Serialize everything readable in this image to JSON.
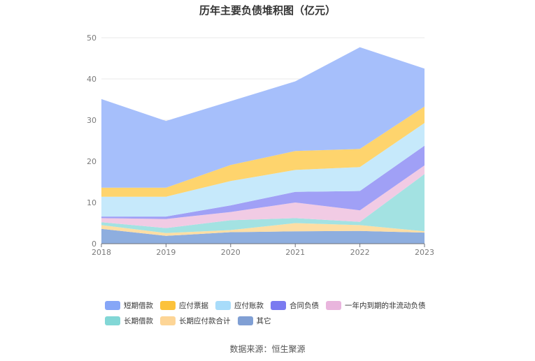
{
  "chart_data": {
    "type": "area",
    "stacked": true,
    "title": "历年主要负债堆积图（亿元）",
    "x": [
      "2018",
      "2019",
      "2020",
      "2021",
      "2022",
      "2023"
    ],
    "ylim": [
      0,
      50
    ],
    "yticks": [
      0,
      10,
      20,
      30,
      40,
      50
    ],
    "grid": true,
    "legend_position": "bottom",
    "series": [
      {
        "name": "其它",
        "color": "#8eaedf",
        "values": [
          3.6,
          1.9,
          2.8,
          3.0,
          3.1,
          2.7
        ]
      },
      {
        "name": "长期应付款合计",
        "color": "#fddea4",
        "values": [
          0.9,
          0.7,
          0.5,
          2.0,
          1.4,
          0.3
        ]
      },
      {
        "name": "长期借款",
        "color": "#a3e2e2",
        "values": [
          0.7,
          1.2,
          2.4,
          1.2,
          0.8,
          13.9
        ]
      },
      {
        "name": "一年内到期的非流动负债",
        "color": "#f1cbe4",
        "values": [
          1.0,
          2.2,
          2.0,
          3.8,
          2.8,
          2.1
        ]
      },
      {
        "name": "合同负债",
        "color": "#a0a0f6",
        "values": [
          0.4,
          0.6,
          1.6,
          2.6,
          4.7,
          4.8
        ]
      },
      {
        "name": "应付账款",
        "color": "#c6e9fb",
        "values": [
          4.8,
          4.8,
          5.9,
          5.3,
          5.8,
          5.5
        ]
      },
      {
        "name": "应付票据",
        "color": "#fed46d",
        "values": [
          2.2,
          2.2,
          3.9,
          4.6,
          4.4,
          4.0
        ]
      },
      {
        "name": "短期借款",
        "color": "#a6bffb",
        "values": [
          21.5,
          16.2,
          15.5,
          16.9,
          24.7,
          9.2
        ]
      }
    ]
  },
  "legend": {
    "items": [
      {
        "label": "短期借款",
        "color": "#86a6f7"
      },
      {
        "label": "应付票据",
        "color": "#fcc23b"
      },
      {
        "label": "应付账款",
        "color": "#a8dcfa"
      },
      {
        "label": "合同负债",
        "color": "#7b7bf0"
      },
      {
        "label": "一年内到期的非流动负债",
        "color": "#e9b5dd"
      },
      {
        "label": "长期借款",
        "color": "#82d7d6"
      },
      {
        "label": "长期应付款合计",
        "color": "#fdd596"
      },
      {
        "label": "其它",
        "color": "#809fd4"
      }
    ]
  },
  "source": "数据来源：恒生聚源"
}
